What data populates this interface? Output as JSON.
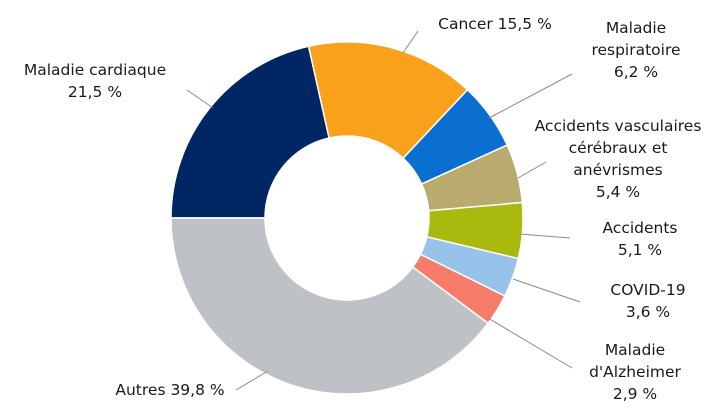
{
  "chart_data": {
    "type": "pie",
    "variant": "donut",
    "title": "",
    "unit": "%",
    "slices": [
      {
        "name": "Maladie cardiaque",
        "value": 21.5,
        "label_lines": [
          "Maladie cardiaque",
          "21,5 %"
        ],
        "color": "#002663"
      },
      {
        "name": "Cancer",
        "value": 15.5,
        "label_lines": [
          "Cancer 15,5 %"
        ],
        "color": "#f9a11b"
      },
      {
        "name": "Maladie respiratoire",
        "value": 6.2,
        "label_lines": [
          "Maladie",
          "respiratoire",
          "6,2 %"
        ],
        "color": "#0b6fd0"
      },
      {
        "name": "Accidents vasculaires cérébraux et anévrismes",
        "value": 5.4,
        "label_lines": [
          "Accidents vasculaires",
          "cérébraux et",
          "anévrismes",
          "5,4 %"
        ],
        "color": "#b9aa6e"
      },
      {
        "name": "Accidents",
        "value": 5.1,
        "label_lines": [
          "Accidents",
          "5,1 %"
        ],
        "color": "#a9b90e"
      },
      {
        "name": "COVID-19",
        "value": 3.6,
        "label_lines": [
          "COVID-19",
          "3,6 %"
        ],
        "color": "#97c2ea"
      },
      {
        "name": "Maladie d'Alzheimer",
        "value": 2.9,
        "label_lines": [
          "Maladie",
          "d'Alzheimer",
          "2,9 %"
        ],
        "color": "#f67b6a"
      },
      {
        "name": "Autres",
        "value": 39.8,
        "label_lines": [
          "Autres 39,8 %"
        ],
        "color": "#bec2c6"
      }
    ],
    "start": "9 o'clock",
    "direction": "clockwise",
    "legend": "none"
  }
}
